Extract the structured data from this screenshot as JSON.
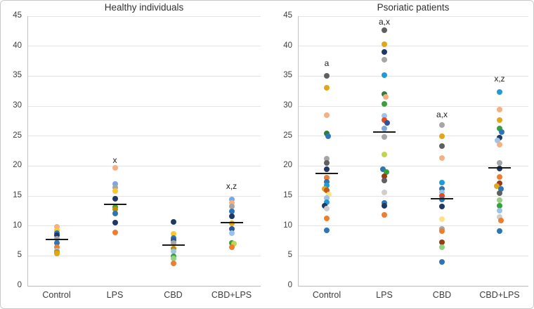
{
  "figure": {
    "background": "#ffffff",
    "border_color": "#c9c9c9",
    "grid_color": "#e4e4e4",
    "axis_color": "#bdbdbd",
    "tick_text_color": "#3d3d3d",
    "mean_line_color": "#1a1a1a"
  },
  "palette": {
    "blue": "#2E75B6",
    "azure": "#1F9CD8",
    "darkblue": "#2F5597",
    "navy": "#1F3864",
    "cornflower": "#7FA7DB",
    "lightblue": "#9DC3E6",
    "orange": "#ED7D31",
    "orangered": "#E8491E",
    "darkorange": "#C55A11",
    "darkred": "#9A3B16",
    "peach": "#F5B183",
    "gold": "#E3A51A",
    "yellow": "#FFC62B",
    "lightyellow": "#FFE18A",
    "olive": "#BF8F00",
    "gray": "#A6A6A6",
    "lightgray": "#CFCDCD",
    "darkgray": "#606060",
    "green": "#38A13C",
    "darkgreen": "#2E7D3C",
    "lightgreen": "#93D080",
    "yellowgreen": "#BFD64F"
  },
  "chart_data": [
    {
      "type": "scatter",
      "title": "Healthy individuals",
      "categories": [
        "Control",
        "LPS",
        "CBD",
        "CBD+LPS"
      ],
      "xlabel": "",
      "ylabel": "",
      "ylim": [
        0,
        45
      ],
      "ytick_step": 5,
      "grid": true,
      "legend": "none",
      "groups": [
        {
          "category": "Control",
          "mean": 7.7,
          "annotation": "",
          "annotation_v": null,
          "points": [
            [
              9.8,
              "peach"
            ],
            [
              9.3,
              "yellow"
            ],
            [
              8.8,
              "blue"
            ],
            [
              8.4,
              "navy"
            ],
            [
              7.9,
              "gray"
            ],
            [
              7.2,
              "blue"
            ],
            [
              6.5,
              "orange"
            ],
            [
              5.9,
              "lightblue"
            ],
            [
              5.6,
              "olive"
            ],
            [
              5.4,
              "gold"
            ]
          ]
        },
        {
          "category": "LPS",
          "mean": 13.6,
          "annotation": "x",
          "annotation_v": 20.9,
          "points": [
            [
              19.7,
              "peach"
            ],
            [
              17.0,
              "cornflower"
            ],
            [
              16.4,
              "gray"
            ],
            [
              15.8,
              "yellow"
            ],
            [
              14.5,
              "navy"
            ],
            [
              13.1,
              "green"
            ],
            [
              12.8,
              "olive"
            ],
            [
              12.1,
              "blue"
            ],
            [
              10.6,
              "navy"
            ],
            [
              8.9,
              "orange"
            ]
          ]
        },
        {
          "category": "CBD",
          "mean": 6.8,
          "annotation": "",
          "annotation_v": null,
          "points": [
            [
              10.7,
              "navy"
            ],
            [
              8.7,
              "yellow"
            ],
            [
              8.0,
              "blue"
            ],
            [
              7.6,
              "darkblue"
            ],
            [
              7.1,
              "gray"
            ],
            [
              6.2,
              "olive"
            ],
            [
              5.8,
              "lightblue"
            ],
            [
              4.9,
              "green"
            ],
            [
              4.6,
              "lightgreen"
            ],
            [
              3.7,
              "orange"
            ]
          ]
        },
        {
          "category": "CBD+LPS",
          "mean": 10.5,
          "annotation": "x,z",
          "annotation_v": 16.5,
          "points": [
            [
              14.4,
              "cornflower"
            ],
            [
              13.8,
              "peach"
            ],
            [
              13.3,
              "gray"
            ],
            [
              12.4,
              "blue"
            ],
            [
              11.6,
              "navy"
            ],
            [
              10.4,
              "gold"
            ],
            [
              9.5,
              "darkblue"
            ],
            [
              8.8,
              "lightblue"
            ],
            [
              7.2,
              "green"
            ],
            [
              7.0,
              "yellowgreen",
              3
            ],
            [
              6.4,
              "orange"
            ]
          ]
        }
      ]
    },
    {
      "type": "scatter",
      "title": "Psoriatic patients",
      "categories": [
        "Control",
        "LPS",
        "CBD",
        "CBD+LPS"
      ],
      "xlabel": "",
      "ylabel": "",
      "ylim": [
        0,
        45
      ],
      "ytick_step": 5,
      "grid": true,
      "legend": "none",
      "groups": [
        {
          "category": "Control",
          "mean": 18.8,
          "annotation": "a",
          "annotation_v": 37.0,
          "points": [
            [
              35.0,
              "darkgray"
            ],
            [
              33.0,
              "gold"
            ],
            [
              28.5,
              "peach"
            ],
            [
              25.4,
              "darkgreen"
            ],
            [
              25.0,
              "blue",
              2
            ],
            [
              21.2,
              "gray"
            ],
            [
              20.5,
              "darkgray"
            ],
            [
              19.4,
              "navy"
            ],
            [
              18.1,
              "orange"
            ],
            [
              17.3,
              "blue"
            ],
            [
              16.7,
              "azure"
            ],
            [
              16.2,
              "gold",
              -3
            ],
            [
              15.9,
              "darkorange"
            ],
            [
              15.2,
              "lightyellow",
              3
            ],
            [
              14.6,
              "lightblue"
            ],
            [
              13.9,
              "azure"
            ],
            [
              13.4,
              "navy",
              -3
            ],
            [
              12.9,
              "lightgray"
            ],
            [
              11.3,
              "orange"
            ],
            [
              9.3,
              "blue"
            ]
          ]
        },
        {
          "category": "LPS",
          "mean": 25.7,
          "annotation": "a,x",
          "annotation_v": 44.0,
          "points": [
            [
              42.7,
              "darkgray"
            ],
            [
              40.3,
              "gold"
            ],
            [
              39.0,
              "navy"
            ],
            [
              37.7,
              "gray"
            ],
            [
              35.1,
              "azure"
            ],
            [
              32.0,
              "darkgreen"
            ],
            [
              31.5,
              "peach",
              2
            ],
            [
              30.3,
              "green"
            ],
            [
              28.4,
              "lightblue"
            ],
            [
              27.6,
              "orangered"
            ],
            [
              27.2,
              "darkblue",
              4
            ],
            [
              26.3,
              "cornflower"
            ],
            [
              24.9,
              "gray"
            ],
            [
              21.9,
              "yellowgreen"
            ],
            [
              19.4,
              "blue",
              -2
            ],
            [
              19.0,
              "green",
              3
            ],
            [
              18.3,
              "darkred"
            ],
            [
              17.6,
              "darkgray"
            ],
            [
              15.6,
              "lightgray"
            ],
            [
              13.8,
              "blue"
            ],
            [
              13.4,
              "navy"
            ],
            [
              11.8,
              "orange"
            ]
          ]
        },
        {
          "category": "CBD",
          "mean": 14.5,
          "annotation": "a,x",
          "annotation_v": 28.5,
          "points": [
            [
              26.8,
              "gray"
            ],
            [
              25.0,
              "gold"
            ],
            [
              23.3,
              "darkgray"
            ],
            [
              21.3,
              "peach"
            ],
            [
              17.2,
              "azure"
            ],
            [
              16.2,
              "blue"
            ],
            [
              15.6,
              "lightblue"
            ],
            [
              15.0,
              "orangered"
            ],
            [
              14.4,
              "blue"
            ],
            [
              13.3,
              "navy"
            ],
            [
              11.1,
              "lightyellow"
            ],
            [
              9.5,
              "gray"
            ],
            [
              9.1,
              "orange"
            ],
            [
              7.3,
              "darkred"
            ],
            [
              6.5,
              "lightgreen"
            ],
            [
              4.0,
              "blue"
            ]
          ]
        },
        {
          "category": "CBD+LPS",
          "mean": 19.7,
          "annotation": "x,z",
          "annotation_v": 34.4,
          "points": [
            [
              32.3,
              "azure"
            ],
            [
              29.4,
              "peach"
            ],
            [
              27.6,
              "gold"
            ],
            [
              26.2,
              "green"
            ],
            [
              25.7,
              "blue",
              3
            ],
            [
              24.7,
              "navy"
            ],
            [
              24.2,
              "lightblue",
              -3
            ],
            [
              23.6,
              "peach"
            ],
            [
              20.5,
              "gray"
            ],
            [
              19.6,
              "navy"
            ],
            [
              18.2,
              "orange"
            ],
            [
              17.1,
              "darkred"
            ],
            [
              16.6,
              "gold",
              -4
            ],
            [
              16.2,
              "blue",
              2
            ],
            [
              15.5,
              "darkgray"
            ],
            [
              14.3,
              "lightgreen"
            ],
            [
              13.4,
              "green"
            ],
            [
              12.5,
              "lightblue"
            ],
            [
              11.5,
              "lightgray"
            ],
            [
              10.9,
              "orange",
              2
            ],
            [
              9.1,
              "blue"
            ]
          ]
        }
      ]
    }
  ]
}
